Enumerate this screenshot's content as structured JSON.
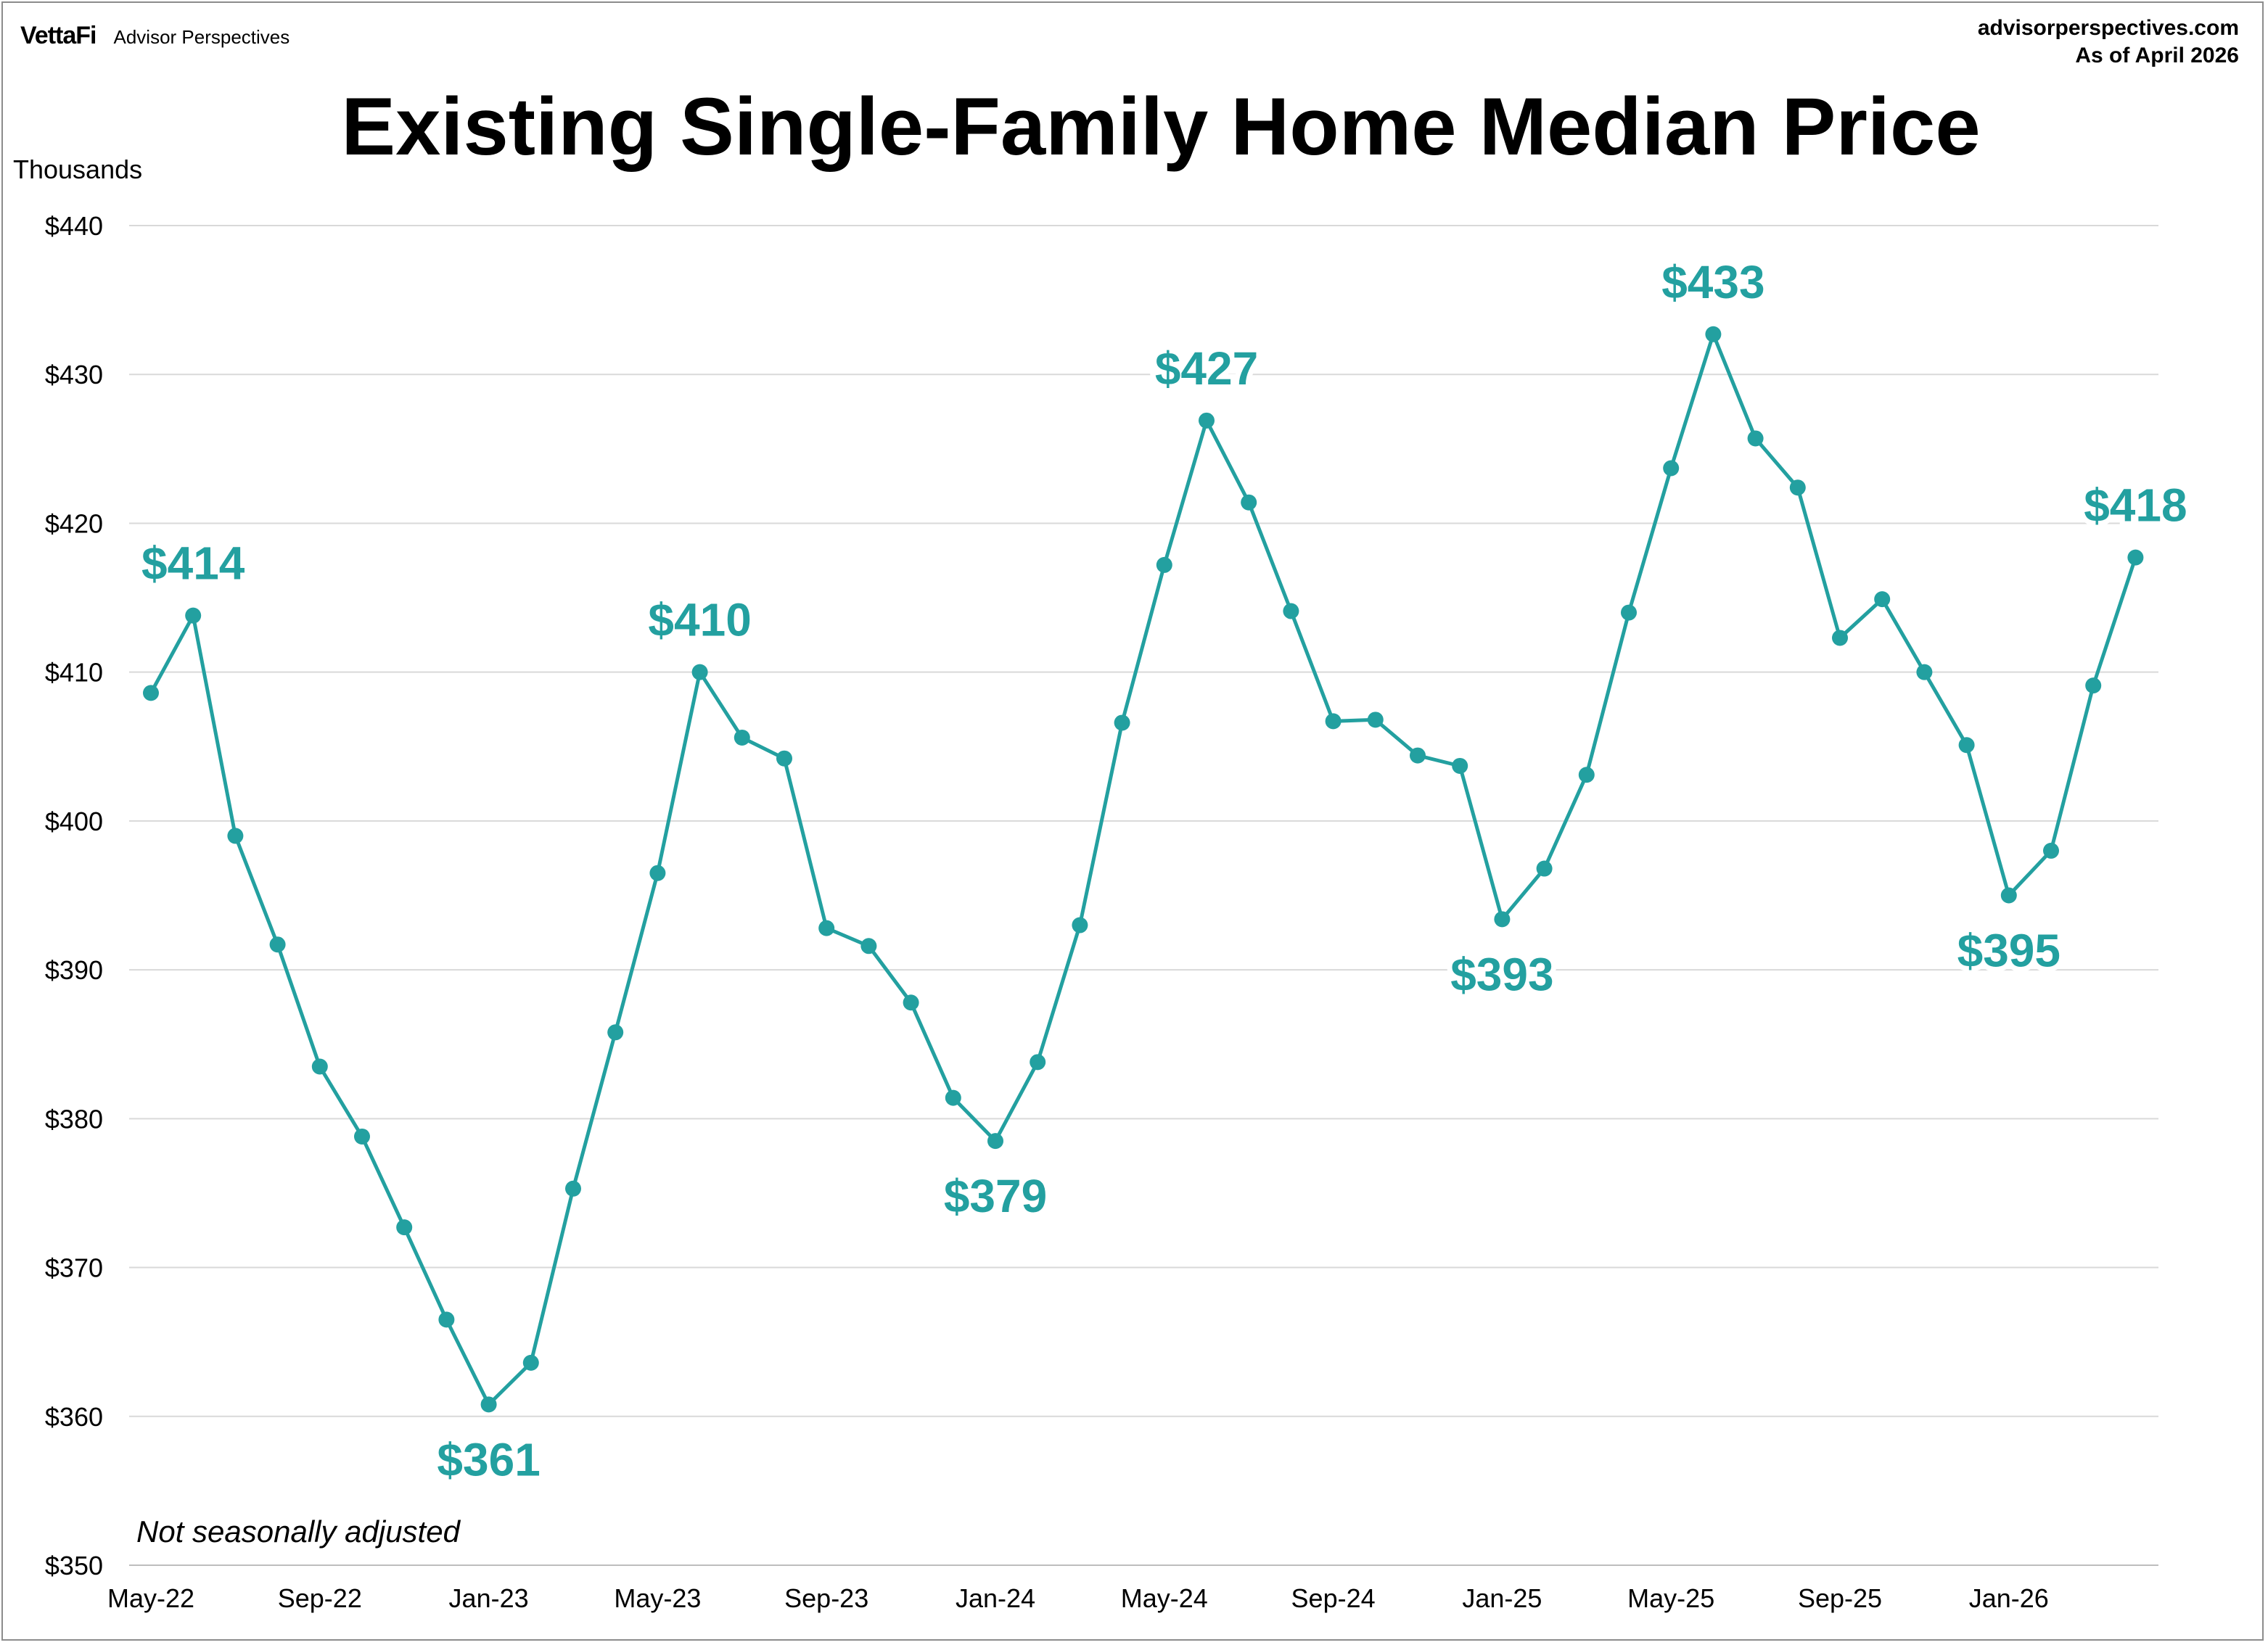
{
  "header": {
    "brand_logo": "VettaFi",
    "brand_name": "Advisor Perspectives",
    "source_site": "advisorperspectives.com",
    "as_of": "As of April 2026"
  },
  "chart_data": {
    "type": "line",
    "title": "Existing Single-Family Home Median Price",
    "ylabel": "Thousands",
    "note": "Not seasonally adjusted",
    "ylim": [
      350,
      440
    ],
    "y_ticks": [
      350,
      360,
      370,
      380,
      390,
      400,
      410,
      420,
      430,
      440
    ],
    "y_tick_labels": [
      "$350",
      "$360",
      "$370",
      "$380",
      "$390",
      "$400",
      "$410",
      "$420",
      "$430",
      "$440"
    ],
    "x_tick_labels": [
      "May-22",
      "Sep-22",
      "Jan-23",
      "May-23",
      "Sep-23",
      "Jan-24",
      "May-24",
      "Sep-24",
      "Jan-25",
      "May-25",
      "Sep-25",
      "Jan-26"
    ],
    "x_tick_every": 4,
    "grid": true,
    "line_color": "#23a0a0",
    "series": [
      {
        "x": [
          "May-22",
          "Jun-22",
          "Jul-22",
          "Aug-22",
          "Sep-22",
          "Oct-22",
          "Nov-22",
          "Dec-22",
          "Jan-23",
          "Feb-23",
          "Mar-23",
          "Apr-23",
          "May-23",
          "Jun-23",
          "Jul-23",
          "Aug-23",
          "Sep-23",
          "Oct-23",
          "Nov-23",
          "Dec-23",
          "Jan-24",
          "Feb-24",
          "Mar-24",
          "Apr-24",
          "May-24",
          "Jun-24",
          "Jul-24",
          "Aug-24",
          "Sep-24",
          "Oct-24",
          "Nov-24",
          "Dec-24",
          "Jan-25",
          "Feb-25",
          "Mar-25",
          "Apr-25",
          "May-25",
          "Jun-25",
          "Jul-25",
          "Aug-25",
          "Sep-25",
          "Oct-25",
          "Nov-25",
          "Dec-25",
          "Jan-26",
          "Feb-26",
          "Mar-26",
          "Apr-26"
        ],
        "values": [
          408.6,
          413.8,
          399.0,
          391.7,
          383.5,
          378.8,
          372.7,
          366.5,
          360.8,
          363.6,
          375.3,
          385.8,
          396.5,
          410.0,
          405.6,
          404.2,
          392.8,
          391.6,
          387.8,
          381.4,
          378.5,
          383.8,
          393.0,
          406.6,
          417.2,
          426.9,
          421.4,
          414.1,
          406.7,
          406.8,
          404.4,
          403.7,
          393.4,
          396.8,
          403.1,
          414.0,
          423.7,
          432.7,
          425.7,
          422.4,
          412.3,
          414.9,
          410.0,
          405.1,
          395.0,
          398.0,
          409.1,
          417.7
        ]
      }
    ],
    "annotations": [
      {
        "x": "Jun-22",
        "label": "$414",
        "position": "above"
      },
      {
        "x": "Jan-23",
        "label": "$361",
        "position": "below"
      },
      {
        "x": "Jun-23",
        "label": "$410",
        "position": "above"
      },
      {
        "x": "Jan-24",
        "label": "$379",
        "position": "below"
      },
      {
        "x": "Jun-24",
        "label": "$427",
        "position": "above"
      },
      {
        "x": "Jan-25",
        "label": "$393",
        "position": "below"
      },
      {
        "x": "Jun-25",
        "label": "$433",
        "position": "above"
      },
      {
        "x": "Jan-26",
        "label": "$395",
        "position": "below"
      },
      {
        "x": "Apr-26",
        "label": "$418",
        "position": "above"
      }
    ]
  }
}
